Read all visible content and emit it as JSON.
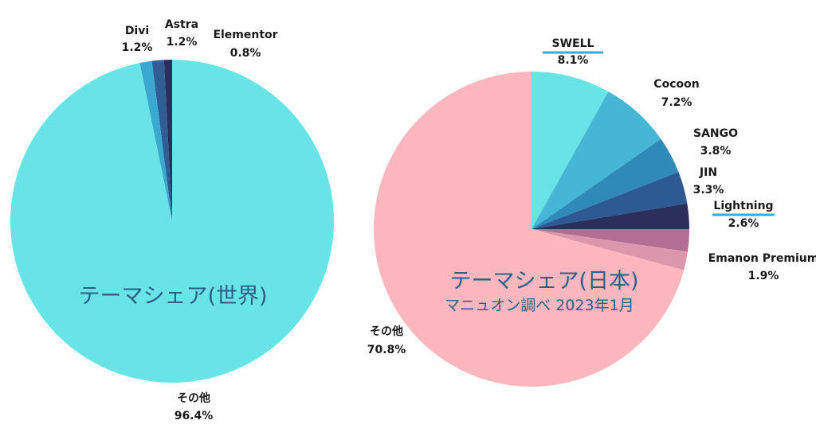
{
  "chart_data": [
    {
      "type": "pie",
      "title": "テーマシェア(世界)",
      "slices": [
        {
          "label": "Elementor",
          "value": 0.8,
          "value_text": "0.8%",
          "color": "#2b2f5e"
        },
        {
          "label": "Astra",
          "value": 1.2,
          "value_text": "1.2%",
          "color": "#2f5d94"
        },
        {
          "label": "Divi",
          "value": 1.2,
          "value_text": "1.2%",
          "color": "#3aa9cf"
        },
        {
          "label": "その他",
          "value": 96.4,
          "value_text": "96.4%",
          "color": "#68e4e6"
        }
      ]
    },
    {
      "type": "pie",
      "title": "テーマシェア(日本)",
      "subtitle": "マニュオン調べ 2023年1月",
      "slices": [
        {
          "label": "SWELL",
          "value": 8.1,
          "value_text": "8.1%",
          "color": "#68e4e6",
          "underline": true
        },
        {
          "label": "Cocoon",
          "value": 7.2,
          "value_text": "7.2%",
          "color": "#45b6d6"
        },
        {
          "label": "SANGO",
          "value": 3.8,
          "value_text": "3.8%",
          "color": "#2f8ab8"
        },
        {
          "label": "JIN",
          "value": 3.3,
          "value_text": "3.3%",
          "color": "#2e5a93"
        },
        {
          "label": "Lightning",
          "value": 2.6,
          "value_text": "2.6%",
          "color": "#2b2f5e",
          "underline": true
        },
        {
          "label": "",
          "value": 2.3,
          "value_text": "",
          "color": "#b26f93"
        },
        {
          "label": "Emanon Premium",
          "value": 1.9,
          "value_text": "1.9%",
          "color": "#dd97ad"
        },
        {
          "label": "その他",
          "value": 70.8,
          "value_text": "70.8%",
          "color": "#fbb7bd"
        }
      ]
    }
  ],
  "colors": {
    "underline": "#3aa9cf",
    "title_text": "#2c5f86",
    "label_text": "#1a1a1a"
  }
}
